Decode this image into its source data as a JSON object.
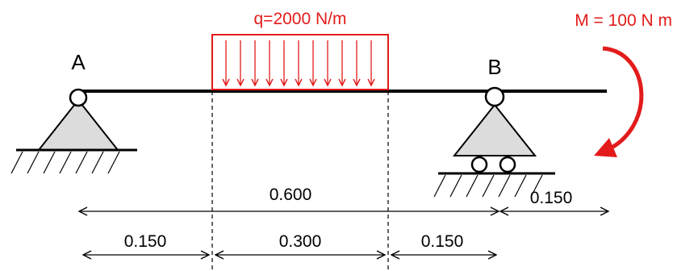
{
  "load": {
    "label": "q=2000 N/m",
    "color": "#e31b1b"
  },
  "moment": {
    "label": "M = 100 N m",
    "color": "#e31b1b"
  },
  "supports": {
    "a": {
      "label": "A"
    },
    "b": {
      "label": "B"
    }
  },
  "dimensions": {
    "total": "0.600",
    "overhang": "0.150",
    "seg1": "0.150",
    "seg2": "0.300",
    "seg3": "0.150"
  }
}
